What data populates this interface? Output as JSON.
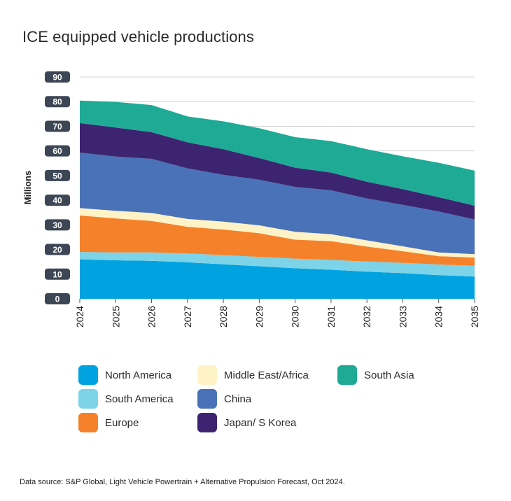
{
  "title": "ICE equipped vehicle productions",
  "source": "Data source: S&P Global, Light Vehicle Powertrain + Alternative Propulsion Forecast, Oct 2024.",
  "chart_data": {
    "type": "area",
    "stacked": true,
    "title": "ICE equipped vehicle productions",
    "ylabel": "Millions",
    "xlabel": "",
    "x": [
      "2024",
      "2025",
      "2026",
      "2027",
      "2028",
      "2029",
      "2030",
      "2031",
      "2032",
      "2033",
      "2034",
      "2035"
    ],
    "ylim": [
      0,
      90
    ],
    "yticks": [
      "0",
      "10",
      "20",
      "30",
      "40",
      "50",
      "60",
      "70",
      "80",
      "90"
    ],
    "grid": true,
    "legend_position": "bottom",
    "series": [
      {
        "name": "North America",
        "color": "#00a3e0",
        "values": [
          16.0,
          15.6,
          15.4,
          14.8,
          14.0,
          13.2,
          12.4,
          11.8,
          11.0,
          10.4,
          9.6,
          9.0
        ]
      },
      {
        "name": "South America",
        "color": "#7dd3e8",
        "values": [
          3.0,
          3.2,
          3.4,
          3.6,
          3.7,
          3.8,
          3.9,
          4.0,
          4.1,
          4.2,
          4.3,
          4.4
        ]
      },
      {
        "name": "Europe",
        "color": "#f5822a",
        "values": [
          14.8,
          13.8,
          12.8,
          10.8,
          10.4,
          9.6,
          7.7,
          7.6,
          6.1,
          4.7,
          3.4,
          3.3
        ]
      },
      {
        "name": "Middle East/Africa",
        "color": "#fef3c7",
        "values": [
          3.0,
          3.1,
          3.2,
          3.2,
          3.2,
          3.2,
          3.2,
          2.8,
          2.5,
          2.0,
          1.5,
          1.4
        ]
      },
      {
        "name": "China",
        "color": "#4a72b8",
        "values": [
          22.5,
          22.0,
          22.0,
          20.5,
          19.0,
          18.5,
          18.2,
          17.8,
          17.0,
          16.8,
          16.6,
          14.1
        ]
      },
      {
        "name": "Japan/ S Korea",
        "color": "#3d2470",
        "values": [
          12.0,
          11.8,
          10.8,
          10.6,
          10.4,
          8.8,
          7.8,
          7.2,
          6.8,
          6.4,
          5.8,
          5.6
        ]
      },
      {
        "name": "South Asia",
        "color": "#1faa96",
        "values": [
          9.1,
          10.4,
          11.0,
          10.5,
          11.3,
          12.1,
          12.4,
          12.8,
          13.2,
          13.3,
          14.0,
          14.2
        ]
      }
    ]
  },
  "legend": [
    {
      "name": "North America",
      "color": "#00a3e0"
    },
    {
      "name": "Middle East/Africa",
      "color": "#fef3c7"
    },
    {
      "name": "South Asia",
      "color": "#1faa96"
    },
    {
      "name": "South America",
      "color": "#7dd3e8"
    },
    {
      "name": "China",
      "color": "#4a72b8"
    },
    {
      "name": "Europe",
      "color": "#f5822a"
    },
    {
      "name": "Japan/ S Korea",
      "color": "#3d2470"
    }
  ]
}
